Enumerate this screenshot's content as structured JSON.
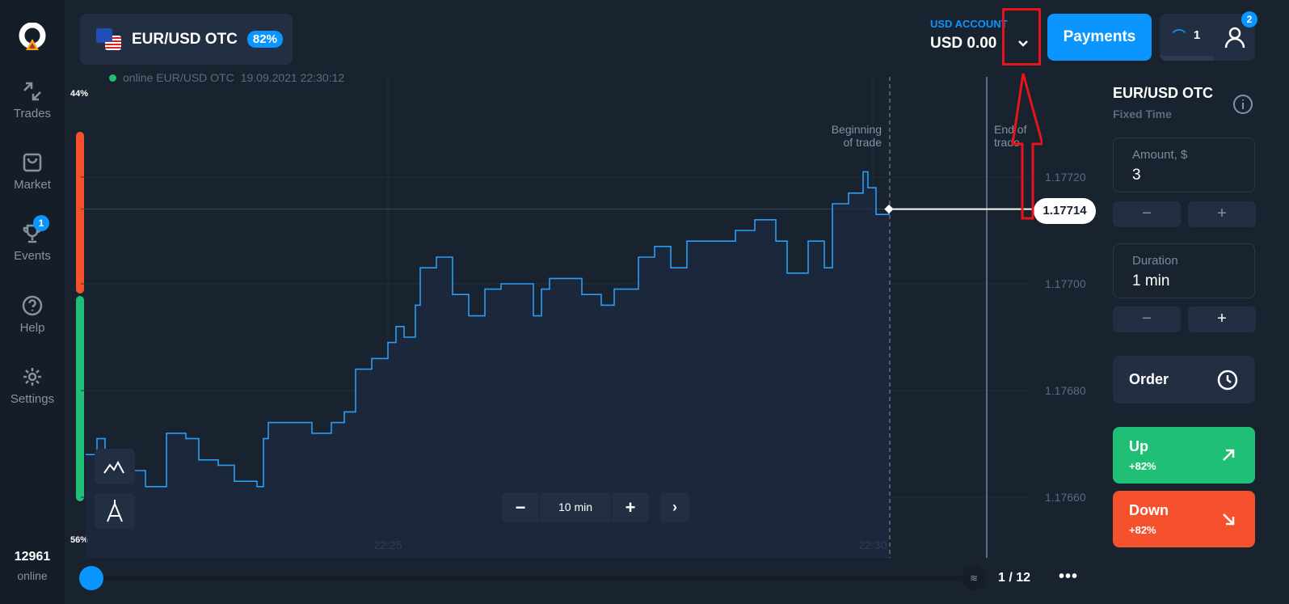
{
  "sidebar": {
    "items": [
      {
        "label": "Trades",
        "icon": "arrows-icon"
      },
      {
        "label": "Market",
        "icon": "bag-icon"
      },
      {
        "label": "Events",
        "icon": "trophy-icon",
        "badge": "1"
      },
      {
        "label": "Help",
        "icon": "help-icon"
      },
      {
        "label": "Settings",
        "icon": "gear-icon"
      }
    ],
    "online_count": "12961",
    "online_label": "online"
  },
  "asset": {
    "name": "EUR/USD OTC",
    "payout": "82%"
  },
  "status": {
    "text": "online EUR/USD OTC",
    "datetime": "19.09.2021 22:30:12"
  },
  "sentiment": {
    "top": "44%",
    "bottom": "56%",
    "colors": {
      "sell": "#f4512c",
      "buy": "#1fbf75"
    }
  },
  "account": {
    "label": "USD ACCOUNT",
    "balance": "USD 0.00"
  },
  "header": {
    "payments": "Payments",
    "trades_count": "1",
    "notifications": "2"
  },
  "panel": {
    "asset": "EUR/USD OTC",
    "mode": "Fixed Time",
    "amount_label": "Amount, $",
    "amount": "3",
    "duration_label": "Duration",
    "duration": "1 min",
    "minus": "−",
    "plus": "+",
    "order": "Order",
    "up": "Up",
    "up_pct": "+82%",
    "down": "Down",
    "down_pct": "+82%",
    "up_color": "#1fbf75",
    "down_color": "#f4512c"
  },
  "chart": {
    "zoom_minus": "−",
    "zoom_value": "10 min",
    "zoom_plus": "+",
    "begin_label_1": "Beginning",
    "begin_label_2": "of trade",
    "end_label_1": "End of",
    "end_label_2": "trade",
    "current_price": "1.17714",
    "page": "1 / 12"
  },
  "chart_data": {
    "type": "line",
    "line_color": "#2a9df4",
    "x_ticks": [
      "22:25",
      "22:30"
    ],
    "y_ticks": [
      "1.17720",
      "1.17700",
      "1.17680",
      "1.17660"
    ],
    "ylim": [
      1.1765,
      1.17735
    ],
    "points": [
      [
        "22:21:53",
        1.17668
      ],
      [
        "22:22:00",
        1.17671
      ],
      [
        "22:22:05",
        1.17664
      ],
      [
        "22:22:15",
        1.17665
      ],
      [
        "22:22:30",
        1.17662
      ],
      [
        "22:22:43",
        1.17672
      ],
      [
        "22:22:55",
        1.17671
      ],
      [
        "22:23:03",
        1.17667
      ],
      [
        "22:23:15",
        1.17666
      ],
      [
        "22:23:25",
        1.17663
      ],
      [
        "22:23:39",
        1.17662
      ],
      [
        "22:23:43",
        1.17671
      ],
      [
        "22:23:46",
        1.17674
      ],
      [
        "22:24:08",
        1.17674
      ],
      [
        "22:24:13",
        1.17672
      ],
      [
        "22:24:25",
        1.17674
      ],
      [
        "22:24:33",
        1.17676
      ],
      [
        "22:24:40",
        1.17684
      ],
      [
        "22:24:50",
        1.17686
      ],
      [
        "22:25:00",
        1.17689
      ],
      [
        "22:25:05",
        1.17692
      ],
      [
        "22:25:10",
        1.1769
      ],
      [
        "22:25:17",
        1.17696
      ],
      [
        "22:25:20",
        1.17703
      ],
      [
        "22:25:30",
        1.17705
      ],
      [
        "22:25:35",
        1.17705
      ],
      [
        "22:25:40",
        1.17698
      ],
      [
        "22:25:50",
        1.17694
      ],
      [
        "22:26:00",
        1.17699
      ],
      [
        "22:26:10",
        1.177
      ],
      [
        "22:26:25",
        1.177
      ],
      [
        "22:26:30",
        1.17694
      ],
      [
        "22:26:35",
        1.17699
      ],
      [
        "22:26:40",
        1.17701
      ],
      [
        "22:26:57",
        1.17701
      ],
      [
        "22:27:00",
        1.17698
      ],
      [
        "22:27:12",
        1.17696
      ],
      [
        "22:27:20",
        1.17699
      ],
      [
        "22:27:35",
        1.17705
      ],
      [
        "22:27:45",
        1.17707
      ],
      [
        "22:27:55",
        1.17703
      ],
      [
        "22:28:05",
        1.17708
      ],
      [
        "22:28:20",
        1.17708
      ],
      [
        "22:28:35",
        1.1771
      ],
      [
        "22:28:47",
        1.17712
      ],
      [
        "22:29:00",
        1.17708
      ],
      [
        "22:29:07",
        1.17702
      ],
      [
        "22:29:20",
        1.17708
      ],
      [
        "22:29:30",
        1.17703
      ],
      [
        "22:29:35",
        1.17715
      ],
      [
        "22:29:45",
        1.17717
      ],
      [
        "22:29:54",
        1.17721
      ],
      [
        "22:29:57",
        1.17718
      ],
      [
        "22:30:02",
        1.17713
      ],
      [
        "22:30:05",
        1.17713
      ],
      [
        "22:30:10",
        1.17714
      ]
    ]
  }
}
